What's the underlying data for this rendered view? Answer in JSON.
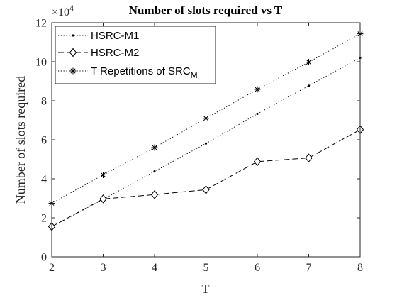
{
  "chart_data": {
    "type": "line",
    "title": "Number of slots required vs T",
    "xlabel": "T",
    "ylabel": "Number of slots required",
    "xlim": [
      2,
      8
    ],
    "ylim": [
      0,
      120000
    ],
    "x": [
      2,
      3,
      4,
      5,
      6,
      7,
      8
    ],
    "x_tick_labels": [
      "2",
      "3",
      "4",
      "5",
      "6",
      "7",
      "8"
    ],
    "y_ticks": [
      0,
      20000,
      40000,
      60000,
      80000,
      100000,
      120000
    ],
    "y_tick_labels": [
      "0",
      "2",
      "4",
      "6",
      "8",
      "10",
      "12"
    ],
    "y_exponent": {
      "base": "×10",
      "power": "4"
    },
    "grid": false,
    "legend_position": "top-left",
    "series": [
      {
        "name": "HSRC-M1",
        "line_style": "dotted",
        "marker": "point",
        "values": [
          15500,
          29500,
          43800,
          58100,
          73300,
          87700,
          102000
        ]
      },
      {
        "name": "HSRC-M2",
        "line_style": "dashed",
        "marker": "diamond",
        "values": [
          15500,
          29700,
          31900,
          34400,
          48800,
          50700,
          65200
        ]
      },
      {
        "name": "T Repetitions of SRC",
        "name_subscript": "M",
        "line_style": "dotted",
        "marker": "asterisk",
        "values": [
          27500,
          42000,
          56000,
          71000,
          85800,
          99800,
          114300
        ]
      }
    ]
  }
}
